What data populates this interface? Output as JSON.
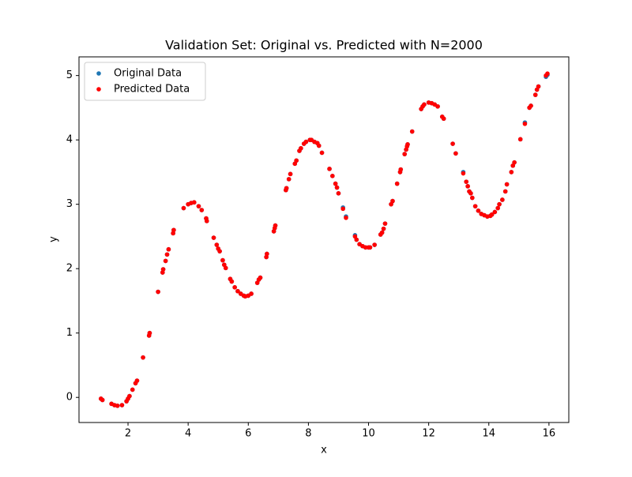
{
  "chart_data": {
    "type": "scatter",
    "title": "Validation Set: Original vs. Predicted with N=2000",
    "x_label": "x",
    "y_label": "y",
    "x": [
      1.1,
      1.15,
      1.45,
      1.55,
      1.65,
      1.8,
      1.95,
      2.0,
      2.05,
      2.15,
      2.25,
      2.3,
      2.5,
      2.7,
      2.72,
      3.0,
      3.15,
      3.17,
      3.25,
      3.3,
      3.35,
      3.5,
      3.52,
      3.85,
      4.0,
      4.1,
      4.2,
      4.35,
      4.45,
      4.6,
      4.62,
      4.85,
      4.95,
      5.0,
      5.05,
      5.15,
      5.2,
      5.25,
      5.4,
      5.45,
      5.55,
      5.65,
      5.75,
      5.85,
      5.9,
      6.0,
      6.1,
      6.3,
      6.35,
      6.4,
      6.6,
      6.62,
      6.85,
      6.88,
      6.9,
      7.25,
      7.27,
      7.35,
      7.4,
      7.55,
      7.6,
      7.7,
      7.75,
      7.85,
      7.92,
      8.05,
      8.1,
      8.2,
      8.3,
      8.35,
      8.45,
      8.7,
      8.8,
      8.9,
      8.95,
      9.0,
      9.15,
      9.25,
      9.55,
      9.6,
      9.7,
      9.8,
      9.9,
      10.0,
      10.05,
      10.2,
      10.4,
      10.45,
      10.5,
      10.55,
      10.75,
      10.8,
      10.95,
      11.05,
      11.07,
      11.2,
      11.25,
      11.28,
      11.3,
      11.45,
      11.75,
      11.8,
      11.85,
      12.0,
      12.1,
      12.2,
      12.3,
      12.45,
      12.5,
      12.8,
      12.9,
      13.15,
      13.25,
      13.3,
      13.35,
      13.4,
      13.45,
      13.55,
      13.65,
      13.75,
      13.85,
      13.95,
      14.05,
      14.1,
      14.2,
      14.3,
      14.35,
      14.45,
      14.55,
      14.6,
      14.75,
      14.8,
      14.85,
      15.05,
      15.2,
      15.35,
      15.4,
      15.55,
      15.6,
      15.65,
      15.9,
      15.95
    ],
    "series": [
      {
        "name": "Original Data",
        "color": "#1f77b4",
        "values": [
          -0.02,
          -0.04,
          -0.1,
          -0.12,
          -0.13,
          -0.12,
          -0.06,
          -0.02,
          0.02,
          0.12,
          0.22,
          0.26,
          0.62,
          0.96,
          1.0,
          1.64,
          1.94,
          1.99,
          2.12,
          2.22,
          2.3,
          2.55,
          2.6,
          2.94,
          3.0,
          3.02,
          3.03,
          2.97,
          2.91,
          2.78,
          2.74,
          2.48,
          2.37,
          2.31,
          2.27,
          2.13,
          2.06,
          2.01,
          1.84,
          1.8,
          1.71,
          1.65,
          1.61,
          1.58,
          1.57,
          1.58,
          1.61,
          1.78,
          1.83,
          1.86,
          2.18,
          2.23,
          2.58,
          2.63,
          2.67,
          3.22,
          3.25,
          3.39,
          3.47,
          3.63,
          3.68,
          3.83,
          3.87,
          3.94,
          3.97,
          4.0,
          4.0,
          3.97,
          3.95,
          3.91,
          3.8,
          3.55,
          3.44,
          3.32,
          3.26,
          3.17,
          2.95,
          2.81,
          2.52,
          2.45,
          2.38,
          2.35,
          2.33,
          2.33,
          2.33,
          2.37,
          2.53,
          2.56,
          2.62,
          2.7,
          3.0,
          3.05,
          3.32,
          3.5,
          3.54,
          3.78,
          3.85,
          3.9,
          3.93,
          4.13,
          4.48,
          4.52,
          4.55,
          4.58,
          4.57,
          4.55,
          4.52,
          4.36,
          4.33,
          3.94,
          3.79,
          3.5,
          3.35,
          3.28,
          3.2,
          3.17,
          3.1,
          2.97,
          2.9,
          2.85,
          2.83,
          2.81,
          2.82,
          2.84,
          2.88,
          2.94,
          3.0,
          3.07,
          3.2,
          3.31,
          3.5,
          3.6,
          3.65,
          4.01,
          4.27,
          4.5,
          4.53,
          4.7,
          4.78,
          4.83,
          4.98,
          5.01
        ]
      },
      {
        "name": "Predicted Data",
        "color": "#ff0000",
        "values": [
          -0.02,
          -0.04,
          -0.1,
          -0.12,
          -0.13,
          -0.12,
          -0.06,
          -0.02,
          0.02,
          0.12,
          0.22,
          0.26,
          0.62,
          0.96,
          1.0,
          1.64,
          1.94,
          1.99,
          2.12,
          2.22,
          2.3,
          2.55,
          2.6,
          2.94,
          3.0,
          3.02,
          3.03,
          2.97,
          2.91,
          2.78,
          2.74,
          2.48,
          2.37,
          2.31,
          2.27,
          2.13,
          2.06,
          2.01,
          1.84,
          1.8,
          1.71,
          1.65,
          1.61,
          1.58,
          1.57,
          1.58,
          1.61,
          1.78,
          1.83,
          1.86,
          2.18,
          2.23,
          2.58,
          2.63,
          2.67,
          3.22,
          3.25,
          3.39,
          3.47,
          3.63,
          3.68,
          3.83,
          3.87,
          3.94,
          3.97,
          4.0,
          4.0,
          3.97,
          3.95,
          3.91,
          3.8,
          3.55,
          3.44,
          3.32,
          3.26,
          3.17,
          2.93,
          2.79,
          2.5,
          2.45,
          2.38,
          2.35,
          2.33,
          2.33,
          2.33,
          2.37,
          2.53,
          2.56,
          2.62,
          2.7,
          3.0,
          3.05,
          3.32,
          3.5,
          3.54,
          3.78,
          3.85,
          3.9,
          3.93,
          4.13,
          4.48,
          4.52,
          4.55,
          4.58,
          4.57,
          4.55,
          4.52,
          4.36,
          4.33,
          3.94,
          3.79,
          3.48,
          3.35,
          3.28,
          3.2,
          3.17,
          3.1,
          2.97,
          2.9,
          2.85,
          2.83,
          2.81,
          2.82,
          2.84,
          2.88,
          2.94,
          3.0,
          3.07,
          3.2,
          3.31,
          3.5,
          3.6,
          3.65,
          4.01,
          4.25,
          4.5,
          4.53,
          4.7,
          4.78,
          4.83,
          5.0,
          5.03
        ]
      }
    ],
    "xlim": [
      0.37,
      16.66
    ],
    "ylim": [
      -0.39,
      5.29
    ],
    "xticks": [
      2,
      4,
      6,
      8,
      10,
      12,
      14,
      16
    ],
    "yticks": [
      0,
      1,
      2,
      3,
      4,
      5
    ],
    "legend": "upper left"
  }
}
